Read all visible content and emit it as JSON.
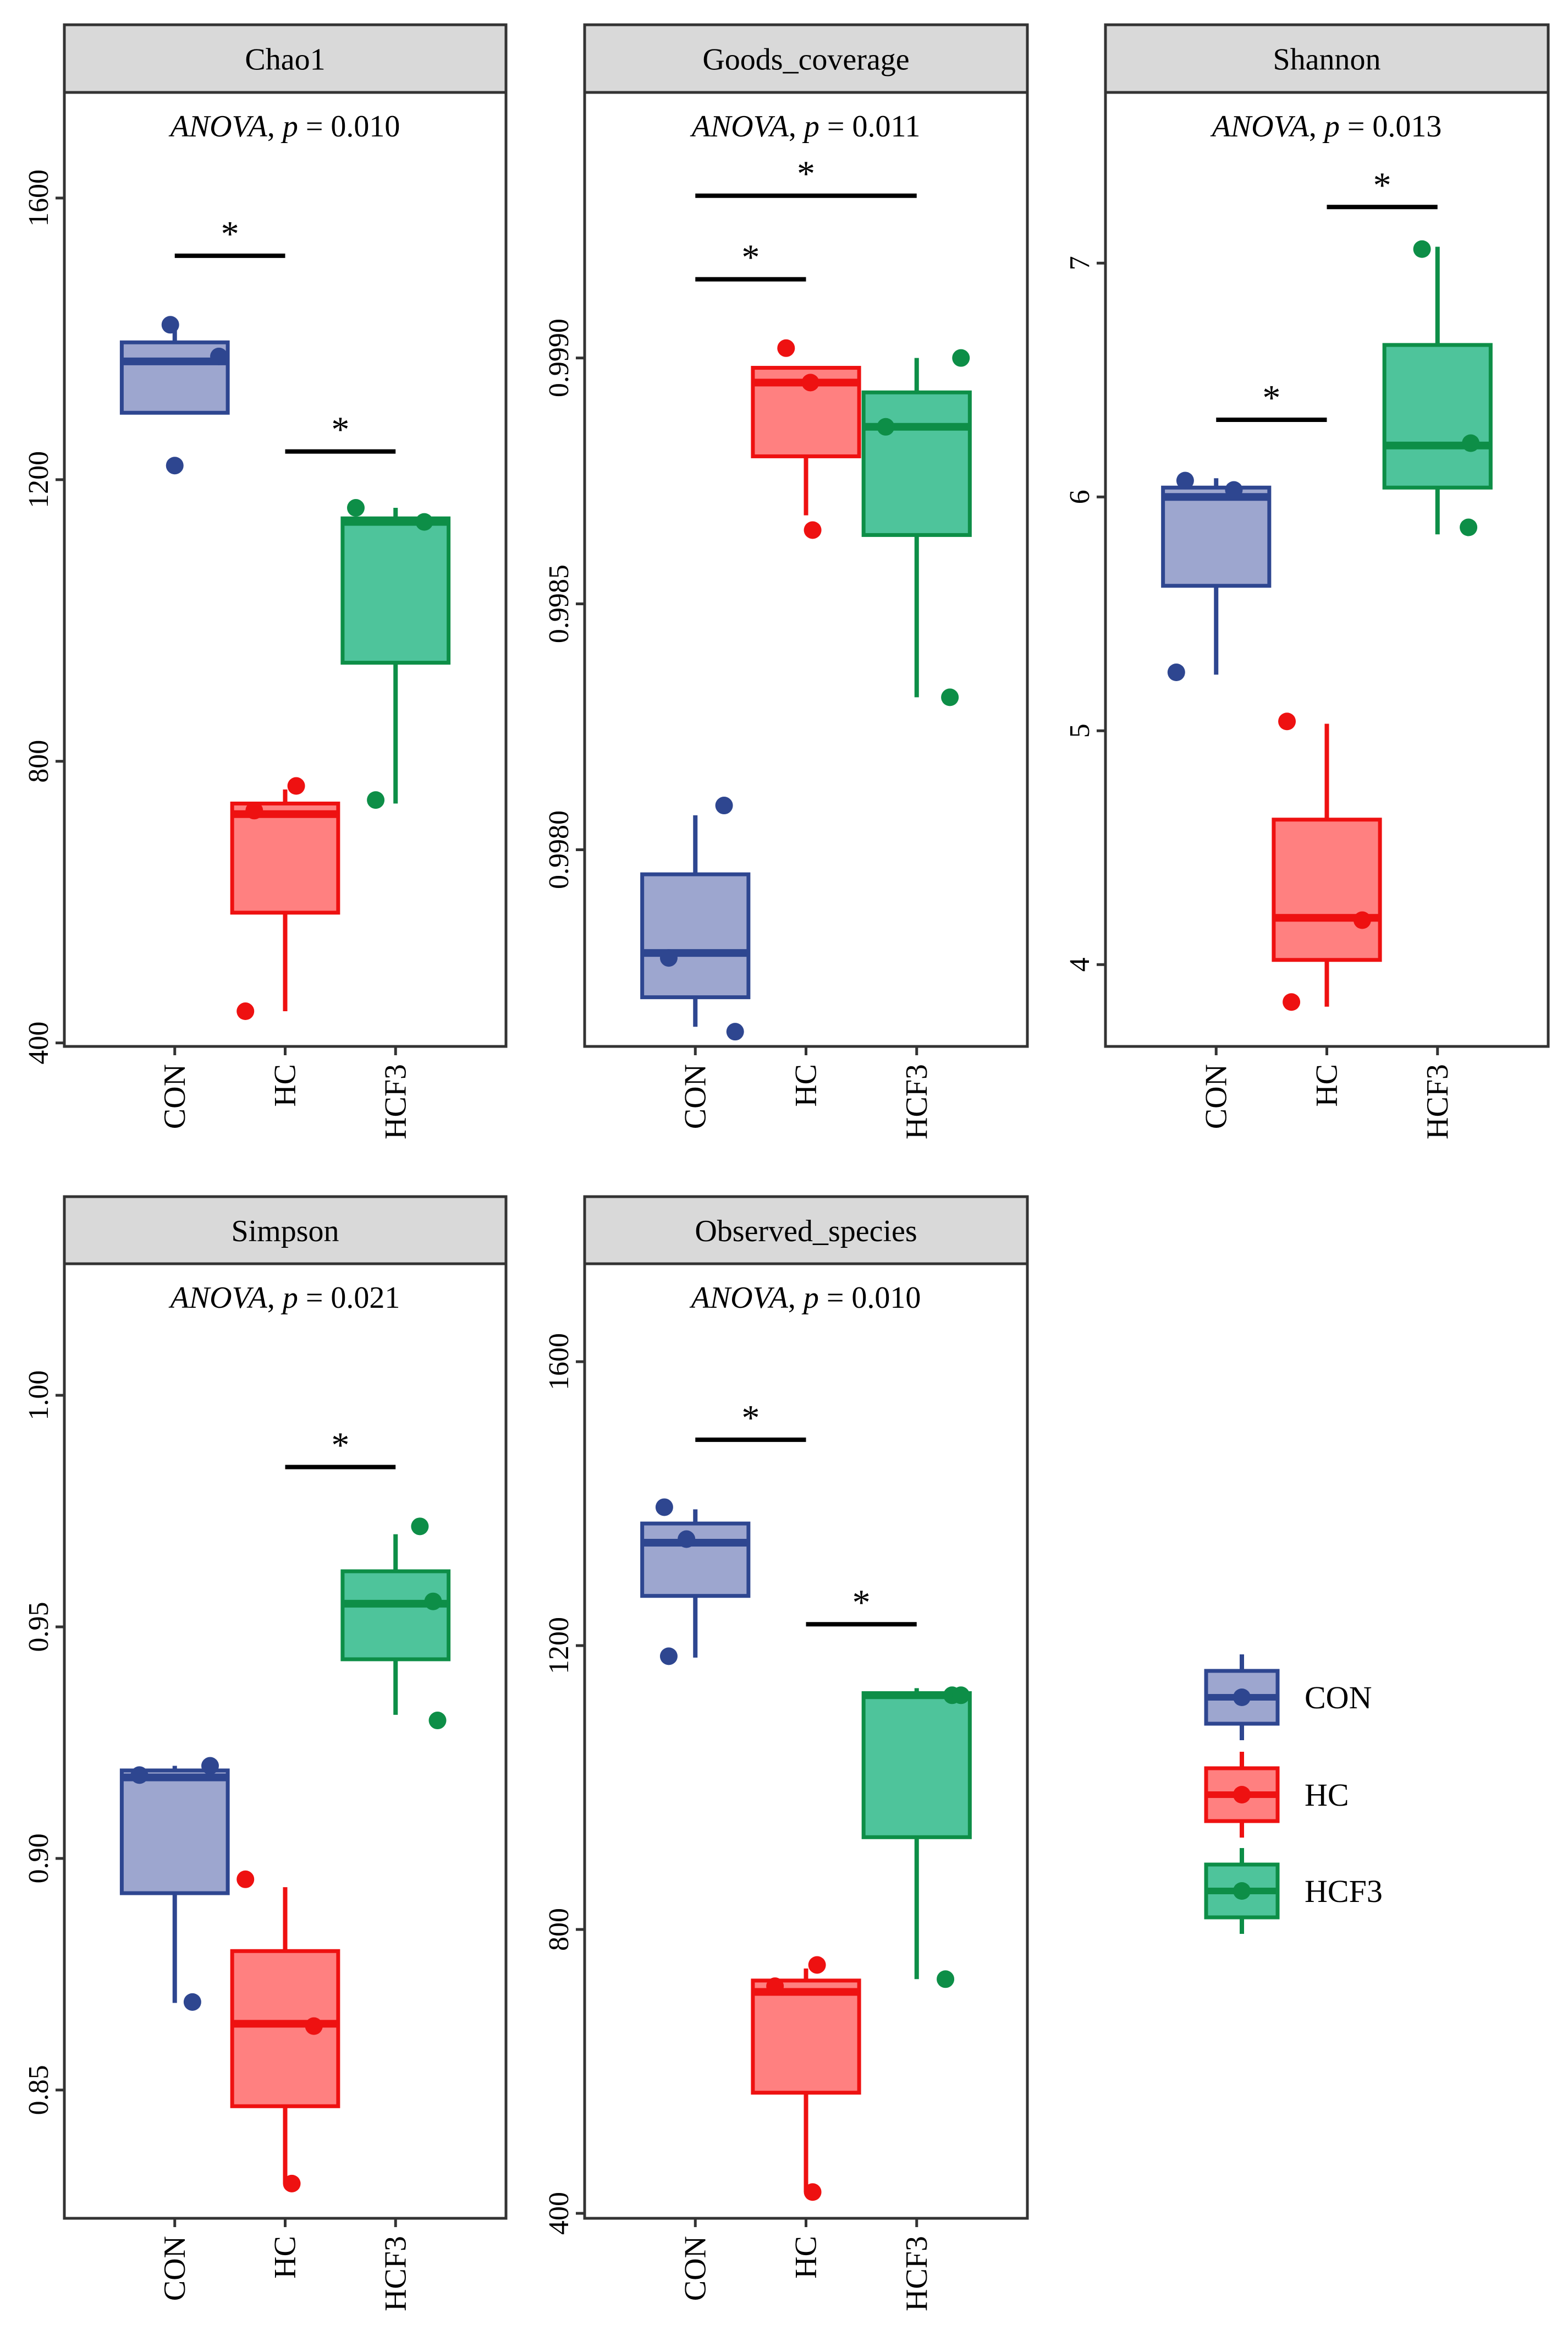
{
  "legend": {
    "placement": "right",
    "items": [
      {
        "label": "CON",
        "fill": "#9da6cf",
        "stroke": "#2e4690"
      },
      {
        "label": "HC",
        "fill": "#ff8080",
        "stroke": "#ee1111"
      },
      {
        "label": "HCF3",
        "fill": "#4ec49b",
        "stroke": "#0d8e47"
      }
    ]
  },
  "chart_data": [
    {
      "type": "box",
      "title": "Chao1",
      "annotation_method": "ANOVA",
      "annotation_p": "p",
      "annotation_rest": " = 0.010",
      "categories": [
        "CON",
        "HC",
        "HCF3"
      ],
      "ylim": [
        395,
        1750
      ],
      "yticks": [
        400,
        800,
        1200,
        1600
      ],
      "ytick_labels": [
        "400",
        "800",
        "1200",
        "1600"
      ],
      "boxes": [
        {
          "q1": 1295,
          "median": 1368,
          "q3": 1395,
          "lo": 1295,
          "hi": 1415
        },
        {
          "q1": 585,
          "median": 725,
          "q3": 740,
          "lo": 445,
          "hi": 760
        },
        {
          "q1": 940,
          "median": 1140,
          "q3": 1145,
          "lo": 740,
          "hi": 1160
        }
      ],
      "points": [
        [
          [
            -0.04,
            1420
          ],
          [
            0.4,
            1375
          ],
          [
            0.0,
            1220
          ]
        ],
        [
          [
            -0.36,
            445
          ],
          [
            -0.28,
            730
          ],
          [
            0.1,
            765
          ]
        ],
        [
          [
            -0.36,
            1160
          ],
          [
            -0.18,
            745
          ],
          [
            0.26,
            1140
          ]
        ]
      ],
      "comparisons": [
        {
          "from": 0,
          "to": 1,
          "y": 1518,
          "label": "*"
        },
        {
          "from": 1,
          "to": 2,
          "y": 1240,
          "label": "*"
        }
      ]
    },
    {
      "type": "box",
      "title": "Goods_coverage",
      "annotation_method": "ANOVA",
      "annotation_p": "p",
      "annotation_rest": " = 0.011",
      "categories": [
        "CON",
        "HC",
        "HCF3"
      ],
      "ylim": [
        0.9976,
        0.99954
      ],
      "yticks": [
        0.998,
        0.9985,
        0.999
      ],
      "ytick_labels": [
        "0.9980",
        "0.9985",
        "0.9990"
      ],
      "boxes": [
        {
          "q1": 0.9977,
          "median": 0.99779,
          "q3": 0.99795,
          "lo": 0.99764,
          "hi": 0.99807
        },
        {
          "q1": 0.9988,
          "median": 0.99895,
          "q3": 0.99898,
          "lo": 0.99868,
          "hi": 0.99898
        },
        {
          "q1": 0.99864,
          "median": 0.99886,
          "q3": 0.99893,
          "lo": 0.99831,
          "hi": 0.999
        }
      ],
      "points": [
        [
          [
            -0.24,
            0.99778
          ],
          [
            0.36,
            0.99763
          ],
          [
            0.26,
            0.99809
          ]
        ],
        [
          [
            -0.18,
            0.99902
          ],
          [
            0.04,
            0.99895
          ],
          [
            0.06,
            0.99865
          ]
        ],
        [
          [
            -0.28,
            0.99886
          ],
          [
            0.3,
            0.99831
          ],
          [
            0.4,
            0.999
          ]
        ]
      ],
      "comparisons": [
        {
          "from": 0,
          "to": 1,
          "y": 0.99916,
          "label": "*"
        },
        {
          "from": 0,
          "to": 2,
          "y": 0.99933,
          "label": "*"
        }
      ]
    },
    {
      "type": "box",
      "title": "Shannon",
      "annotation_method": "ANOVA",
      "annotation_p": "p",
      "annotation_rest": " = 0.013",
      "categories": [
        "CON",
        "HC",
        "HCF3"
      ],
      "ylim": [
        3.65,
        7.73
      ],
      "yticks": [
        4,
        5,
        6,
        7
      ],
      "ytick_labels": [
        "4",
        "5",
        "6",
        "7"
      ],
      "boxes": [
        {
          "q1": 5.62,
          "median": 6.0,
          "q3": 6.04,
          "lo": 5.24,
          "hi": 6.08
        },
        {
          "q1": 4.02,
          "median": 4.2,
          "q3": 4.62,
          "lo": 3.82,
          "hi": 5.03
        },
        {
          "q1": 6.04,
          "median": 6.22,
          "q3": 6.65,
          "lo": 5.84,
          "hi": 7.07
        }
      ],
      "points": [
        [
          [
            -0.36,
            5.25
          ],
          [
            -0.28,
            6.07
          ],
          [
            0.16,
            6.03
          ]
        ],
        [
          [
            -0.32,
            3.84
          ],
          [
            -0.36,
            5.04
          ],
          [
            0.32,
            4.19
          ]
        ],
        [
          [
            -0.14,
            7.06
          ],
          [
            0.3,
            6.23
          ],
          [
            0.28,
            5.87
          ]
        ]
      ],
      "comparisons": [
        {
          "from": 0,
          "to": 1,
          "y": 6.33,
          "label": "*"
        },
        {
          "from": 1,
          "to": 2,
          "y": 7.24,
          "label": "*"
        }
      ]
    },
    {
      "type": "box",
      "title": "Simpson",
      "annotation_method": "ANOVA",
      "annotation_p": "p",
      "annotation_rest": " = 0.021",
      "categories": [
        "CON",
        "HC",
        "HCF3"
      ],
      "ylim": [
        0.8223,
        1.0284
      ],
      "yticks": [
        0.85,
        0.9,
        0.95,
        1.0
      ],
      "ytick_labels": [
        "0.85",
        "0.90",
        "0.95",
        "1.00"
      ],
      "boxes": [
        {
          "q1": 0.8925,
          "median": 0.9175,
          "q3": 0.919,
          "lo": 0.8688,
          "hi": 0.92
        },
        {
          "q1": 0.8465,
          "median": 0.8643,
          "q3": 0.88,
          "lo": 0.8298,
          "hi": 0.8938
        },
        {
          "q1": 0.943,
          "median": 0.955,
          "q3": 0.962,
          "lo": 0.931,
          "hi": 0.97
        }
      ],
      "points": [
        [
          [
            -0.32,
            0.918
          ],
          [
            0.16,
            0.869
          ],
          [
            0.32,
            0.92
          ]
        ],
        [
          [
            -0.36,
            0.8955
          ],
          [
            0.06,
            0.8298
          ],
          [
            0.26,
            0.8638
          ]
        ],
        [
          [
            0.22,
            0.9717
          ],
          [
            0.34,
            0.9555
          ],
          [
            0.38,
            0.9298
          ]
        ]
      ],
      "comparisons": [
        {
          "from": 1,
          "to": 2,
          "y": 0.9845,
          "label": "*"
        }
      ]
    },
    {
      "type": "box",
      "title": "Observed_species",
      "annotation_method": "ANOVA",
      "annotation_p": "p",
      "annotation_rest": " = 0.010",
      "categories": [
        "CON",
        "HC",
        "HCF3"
      ],
      "ylim": [
        393,
        1738
      ],
      "yticks": [
        400,
        800,
        1200,
        1600
      ],
      "ytick_labels": [
        "400",
        "800",
        "1200",
        "1600"
      ],
      "boxes": [
        {
          "q1": 1270,
          "median": 1345,
          "q3": 1372,
          "lo": 1183,
          "hi": 1392
        },
        {
          "q1": 570,
          "median": 712,
          "q3": 728,
          "lo": 430,
          "hi": 745
        },
        {
          "q1": 930,
          "median": 1130,
          "q3": 1133,
          "lo": 730,
          "hi": 1140
        }
      ],
      "points": [
        [
          [
            -0.28,
            1395
          ],
          [
            -0.08,
            1350
          ],
          [
            -0.24,
            1185
          ]
        ],
        [
          [
            -0.28,
            720
          ],
          [
            0.06,
            430
          ],
          [
            0.1,
            750
          ]
        ],
        [
          [
            0.26,
            730
          ],
          [
            0.32,
            1130
          ],
          [
            0.4,
            1130
          ]
        ]
      ],
      "comparisons": [
        {
          "from": 0,
          "to": 1,
          "y": 1490,
          "label": "*"
        },
        {
          "from": 1,
          "to": 2,
          "y": 1230,
          "label": "*"
        }
      ]
    }
  ]
}
